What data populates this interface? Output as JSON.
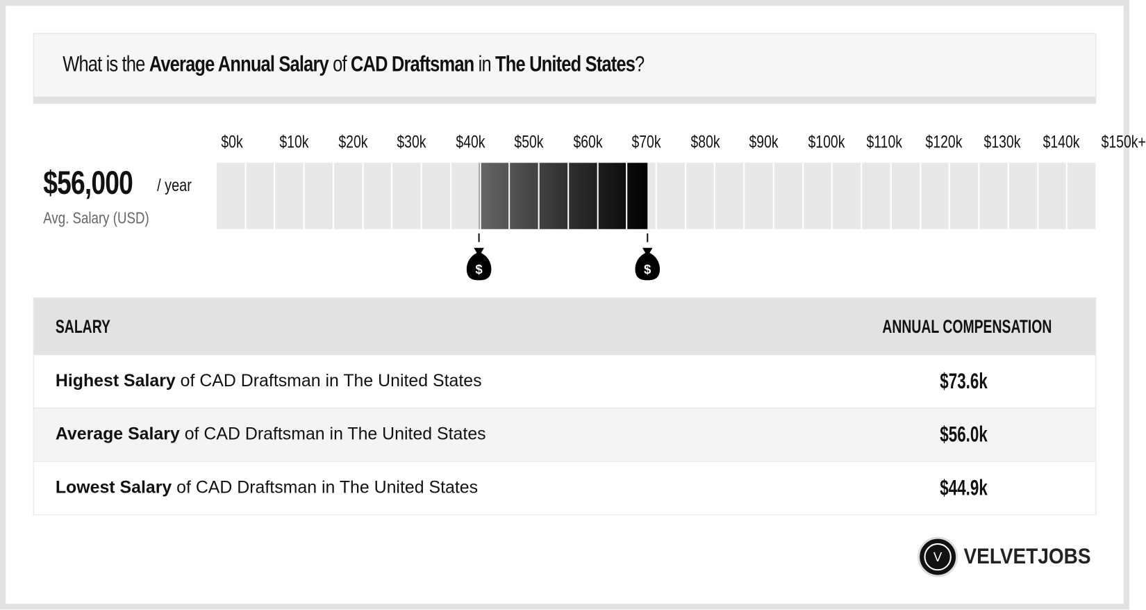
{
  "header": {
    "q1": "What is the ",
    "b1": "Average Annual Salary",
    "q2": " of ",
    "b2": "CAD Draftsman",
    "q3": " in ",
    "b3": "The United States",
    "q4": "?"
  },
  "average": {
    "value": "$56,000",
    "unit": "/ year",
    "label": "Avg. Salary (USD)"
  },
  "chart_data": {
    "type": "range-bar",
    "tick_labels": [
      "$0k",
      "$10k",
      "$20k",
      "$30k",
      "$40k",
      "$50k",
      "$60k",
      "$70k",
      "$80k",
      "$90k",
      "$100k",
      "$110k",
      "$120k",
      "$130k",
      "$140k",
      "$150k+"
    ],
    "xlim": [
      0,
      150
    ],
    "cell_size": 5,
    "low": 44.9,
    "high": 73.6,
    "average": 56.0,
    "colors": {
      "empty": "#e8e8e8",
      "start": "#666666",
      "end": "#000000"
    }
  },
  "table": {
    "headers": [
      "SALARY",
      "ANNUAL COMPENSATION"
    ],
    "rows": [
      {
        "bold": "Highest Salary",
        "rest": " of CAD Draftsman in The United States",
        "value": "$73.6k"
      },
      {
        "bold": "Average Salary",
        "rest": " of CAD Draftsman in The United States",
        "value": "$56.0k"
      },
      {
        "bold": "Lowest Salary",
        "rest": " of CAD Draftsman in The United States",
        "value": "$44.9k"
      }
    ]
  },
  "logo": {
    "letter": "V",
    "text": "VELVETJOBS"
  }
}
